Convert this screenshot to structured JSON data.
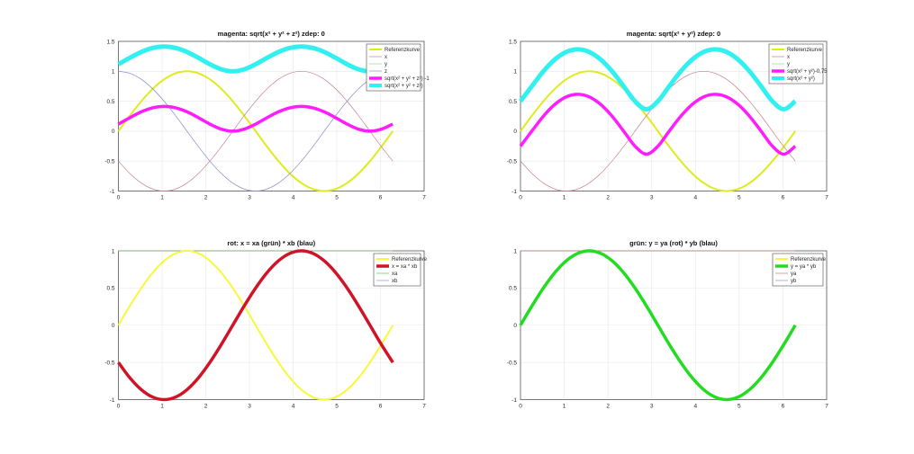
{
  "chart_data": [
    {
      "type": "line",
      "title": "magenta: sqrt(x² + y² + z²) zdep: 0",
      "xlim": [
        0,
        7
      ],
      "ylim": [
        -1,
        1.5
      ],
      "xticks": [
        "0",
        "1",
        "2",
        "3",
        "4",
        "5",
        "6",
        "7"
      ],
      "yticks": [
        "-1",
        "-0.5",
        "0",
        "0.5",
        "1",
        "1.5"
      ],
      "grid": true,
      "legend_position": "top-right",
      "x": [
        0,
        0.262,
        0.524,
        0.785,
        1.047,
        1.309,
        1.571,
        1.833,
        2.094,
        2.356,
        2.618,
        2.88,
        3.142,
        3.403,
        3.665,
        3.927,
        4.189,
        4.451,
        4.712,
        4.974,
        5.236,
        5.498,
        5.76,
        6.021,
        6.283
      ],
      "series": [
        {
          "name": "Referenzkurve",
          "color": "#dcec1c",
          "values": [
            0,
            0.259,
            0.5,
            0.707,
            0.866,
            0.966,
            1,
            0.966,
            0.866,
            0.707,
            0.5,
            0.259,
            0,
            -0.259,
            -0.5,
            -0.707,
            -0.866,
            -0.966,
            -1,
            -0.966,
            -0.866,
            -0.707,
            -0.5,
            -0.259,
            0
          ]
        },
        {
          "name": "x",
          "color": "#c8808a",
          "values": [
            -0.5,
            -0.707,
            -0.866,
            -0.966,
            -1,
            -0.966,
            -0.866,
            -0.707,
            -0.5,
            -0.259,
            0,
            0.259,
            0.5,
            0.707,
            0.866,
            0.966,
            1,
            0.966,
            0.866,
            0.707,
            0.5,
            0.259,
            0,
            -0.259,
            -0.5
          ]
        },
        {
          "name": "y",
          "color": "#90dc90",
          "values": [
            0,
            0.259,
            0.5,
            0.707,
            0.866,
            0.966,
            1,
            0.966,
            0.866,
            0.707,
            0.5,
            0.259,
            0,
            -0.259,
            -0.5,
            -0.707,
            -0.866,
            -0.966,
            -1,
            -0.966,
            -0.866,
            -0.707,
            -0.5,
            -0.259,
            0
          ]
        },
        {
          "name": "z",
          "color": "#8888c8",
          "values": [
            1,
            0.966,
            0.866,
            0.707,
            0.5,
            0.259,
            0,
            -0.259,
            -0.5,
            -0.707,
            -0.866,
            -0.966,
            -1,
            -0.966,
            -0.866,
            -0.707,
            -0.5,
            -0.259,
            0,
            0.259,
            0.5,
            0.707,
            0.866,
            0.966,
            1
          ]
        },
        {
          "name": "sqrt(x² + y² + z²) -1",
          "color": "#ff1cff",
          "values": [
            0.118,
            0.225,
            0.323,
            0.39,
            0.414,
            0.39,
            0.323,
            0.225,
            0.118,
            0.033,
            0,
            0.033,
            0.118,
            0.225,
            0.323,
            0.39,
            0.414,
            0.39,
            0.323,
            0.225,
            0.118,
            0.033,
            0,
            0.033,
            0.118
          ]
        },
        {
          "name": "sqrt(x² + y² + z²)",
          "color": "#33f0f0",
          "values": [
            1.118,
            1.225,
            1.323,
            1.39,
            1.414,
            1.39,
            1.323,
            1.225,
            1.118,
            1.033,
            1,
            1.033,
            1.118,
            1.225,
            1.323,
            1.39,
            1.414,
            1.39,
            1.323,
            1.225,
            1.118,
            1.033,
            1,
            1.033,
            1.118
          ]
        }
      ]
    },
    {
      "type": "line",
      "title": "magenta: sqrt(x² + y²) zdep: 0",
      "xlim": [
        0,
        7
      ],
      "ylim": [
        -1,
        1.5
      ],
      "xticks": [
        "0",
        "1",
        "2",
        "3",
        "4",
        "5",
        "6",
        "7"
      ],
      "yticks": [
        "-1",
        "-0.5",
        "0",
        "0.5",
        "1",
        "1.5"
      ],
      "grid": true,
      "legend_position": "top-right",
      "x": [
        0,
        0.262,
        0.524,
        0.785,
        1.047,
        1.309,
        1.571,
        1.833,
        2.094,
        2.356,
        2.618,
        2.88,
        3.142,
        3.403,
        3.665,
        3.927,
        4.189,
        4.451,
        4.712,
        4.974,
        5.236,
        5.498,
        5.76,
        6.021,
        6.283
      ],
      "series": [
        {
          "name": "Referenzkurve",
          "color": "#dcec1c",
          "values": [
            0,
            0.259,
            0.5,
            0.707,
            0.866,
            0.966,
            1,
            0.966,
            0.866,
            0.707,
            0.5,
            0.259,
            0,
            -0.259,
            -0.5,
            -0.707,
            -0.866,
            -0.966,
            -1,
            -0.966,
            -0.866,
            -0.707,
            -0.5,
            -0.259,
            0
          ]
        },
        {
          "name": "x",
          "color": "#c8808a",
          "values": [
            -0.5,
            -0.707,
            -0.866,
            -0.966,
            -1,
            -0.966,
            -0.866,
            -0.707,
            -0.5,
            -0.259,
            0,
            0.259,
            0.5,
            0.707,
            0.866,
            0.966,
            1,
            0.966,
            0.866,
            0.707,
            0.5,
            0.259,
            0,
            -0.259,
            -0.5
          ]
        },
        {
          "name": "y",
          "color": "#90dc90",
          "values": [
            0,
            0.259,
            0.5,
            0.707,
            0.866,
            0.966,
            1,
            0.966,
            0.866,
            0.707,
            0.5,
            0.259,
            0,
            -0.259,
            -0.5,
            -0.707,
            -0.866,
            -0.966,
            -1,
            -0.966,
            -0.866,
            -0.707,
            -0.5,
            -0.259,
            0
          ]
        },
        {
          "name": "sqrt(x² + y²)-0,75",
          "color": "#ff1cff",
          "values": [
            -0.25,
            0.003,
            0.25,
            0.447,
            0.573,
            0.616,
            0.573,
            0.447,
            0.25,
            0.003,
            -0.25,
            -0.384,
            -0.25,
            0.003,
            0.25,
            0.447,
            0.573,
            0.616,
            0.573,
            0.447,
            0.25,
            0.003,
            -0.25,
            -0.384,
            -0.25
          ]
        },
        {
          "name": "sqrt(x² + y²)",
          "color": "#33f0f0",
          "values": [
            0.5,
            0.753,
            1,
            1.197,
            1.323,
            1.366,
            1.323,
            1.197,
            1,
            0.753,
            0.5,
            0.366,
            0.5,
            0.753,
            1,
            1.197,
            1.323,
            1.366,
            1.323,
            1.197,
            1,
            0.753,
            0.5,
            0.366,
            0.5
          ]
        }
      ]
    },
    {
      "type": "line",
      "title": "rot: x = xa (grün) * xb (blau)",
      "xlim": [
        0,
        7
      ],
      "ylim": [
        -1,
        1
      ],
      "xticks": [
        "0",
        "1",
        "2",
        "3",
        "4",
        "5",
        "6",
        "7"
      ],
      "yticks": [
        "-1",
        "-0.5",
        "0",
        "0.5",
        "1"
      ],
      "grid": true,
      "legend_position": "top-right",
      "x": [
        0,
        0.262,
        0.524,
        0.785,
        1.047,
        1.309,
        1.571,
        1.833,
        2.094,
        2.356,
        2.618,
        2.88,
        3.142,
        3.403,
        3.665,
        3.927,
        4.189,
        4.451,
        4.712,
        4.974,
        5.236,
        5.498,
        5.76,
        6.021,
        6.283
      ],
      "series": [
        {
          "name": "Referenzkurve",
          "color": "#f8f83a",
          "values": [
            0,
            0.259,
            0.5,
            0.707,
            0.866,
            0.966,
            1,
            0.966,
            0.866,
            0.707,
            0.5,
            0.259,
            0,
            -0.259,
            -0.5,
            -0.707,
            -0.866,
            -0.966,
            -1,
            -0.966,
            -0.866,
            -0.707,
            -0.5,
            -0.259,
            0
          ]
        },
        {
          "name": "x = xa * xb",
          "color": "#d01428",
          "values": [
            -0.5,
            -0.707,
            -0.866,
            -0.966,
            -1,
            -0.966,
            -0.866,
            -0.707,
            -0.5,
            -0.259,
            0,
            0.259,
            0.5,
            0.707,
            0.866,
            0.966,
            1,
            0.966,
            0.866,
            0.707,
            0.5,
            0.259,
            0,
            -0.259,
            -0.5
          ]
        },
        {
          "name": "xa",
          "color": "#7cc87c",
          "values": [
            1,
            1,
            1,
            1,
            1,
            1,
            1,
            1,
            1,
            1,
            1,
            1,
            1,
            1,
            1,
            1,
            1,
            1,
            1,
            1,
            1,
            1,
            1,
            1,
            1
          ]
        },
        {
          "name": "xb",
          "color": "#a0a0dc",
          "values": [
            -0.5,
            -0.707,
            -0.866,
            -0.966,
            -1,
            -0.966,
            -0.866,
            -0.707,
            -0.5,
            -0.259,
            0,
            0.259,
            0.5,
            0.707,
            0.866,
            0.966,
            1,
            0.966,
            0.866,
            0.707,
            0.5,
            0.259,
            0,
            -0.259,
            -0.5
          ]
        }
      ]
    },
    {
      "type": "line",
      "title": "grün: y = ya (rot) * yb (blau)",
      "xlim": [
        0,
        7
      ],
      "ylim": [
        -1,
        1
      ],
      "xticks": [
        "0",
        "1",
        "2",
        "3",
        "4",
        "5",
        "6",
        "7"
      ],
      "yticks": [
        "-1",
        "-0.5",
        "0",
        "0.5",
        "1"
      ],
      "grid": true,
      "legend_position": "top-right",
      "x": [
        0,
        0.262,
        0.524,
        0.785,
        1.047,
        1.309,
        1.571,
        1.833,
        2.094,
        2.356,
        2.618,
        2.88,
        3.142,
        3.403,
        3.665,
        3.927,
        4.189,
        4.451,
        4.712,
        4.974,
        5.236,
        5.498,
        5.76,
        6.021,
        6.283
      ],
      "series": [
        {
          "name": "Referenzkurve",
          "color": "#f8f83a",
          "values": [
            0,
            0.259,
            0.5,
            0.707,
            0.866,
            0.966,
            1,
            0.966,
            0.866,
            0.707,
            0.5,
            0.259,
            0,
            -0.259,
            -0.5,
            -0.707,
            -0.866,
            -0.966,
            -1,
            -0.966,
            -0.866,
            -0.707,
            -0.5,
            -0.259,
            0
          ]
        },
        {
          "name": "y = ya * yb",
          "color": "#22dc22",
          "values": [
            0,
            0.259,
            0.5,
            0.707,
            0.866,
            0.966,
            1,
            0.966,
            0.866,
            0.707,
            0.5,
            0.259,
            0,
            -0.259,
            -0.5,
            -0.707,
            -0.866,
            -0.966,
            -1,
            -0.966,
            -0.866,
            -0.707,
            -0.5,
            -0.259,
            0
          ]
        },
        {
          "name": "ya",
          "color": "#d88888",
          "values": [
            1,
            1,
            1,
            1,
            1,
            1,
            1,
            1,
            1,
            1,
            1,
            1,
            1,
            1,
            1,
            1,
            1,
            1,
            1,
            1,
            1,
            1,
            1,
            1,
            1
          ]
        },
        {
          "name": "yb",
          "color": "#a0a0dc",
          "values": [
            0,
            0.259,
            0.5,
            0.707,
            0.866,
            0.966,
            1,
            0.966,
            0.866,
            0.707,
            0.5,
            0.259,
            0,
            -0.259,
            -0.5,
            -0.707,
            -0.866,
            -0.966,
            -1,
            -0.966,
            -0.866,
            -0.707,
            -0.5,
            -0.259,
            0
          ]
        }
      ]
    }
  ]
}
